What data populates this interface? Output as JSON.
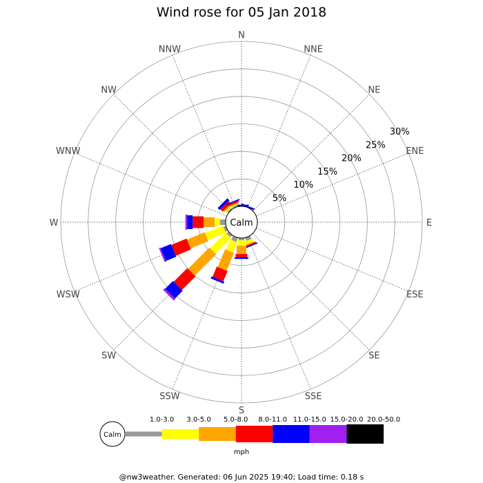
{
  "chart_data": {
    "type": "wind-rose",
    "title": "Wind rose for 05 Jan 2018",
    "directions": [
      "N",
      "NNE",
      "NE",
      "ENE",
      "E",
      "ESE",
      "SE",
      "SSE",
      "S",
      "SSW",
      "SW",
      "WSW",
      "W",
      "WNW",
      "NW",
      "NNW"
    ],
    "ring_labels": [
      "5%",
      "10%",
      "15%",
      "20%",
      "25%",
      "30%"
    ],
    "ring_values": [
      5,
      10,
      15,
      20,
      25,
      30
    ],
    "r_max": 30,
    "grid": true,
    "calm_label": "Calm",
    "speed_unit": "mph",
    "bins": [
      {
        "label": "1.0-3.0",
        "color": "#999999"
      },
      {
        "label": "3.0-5.0",
        "color": "#ffff00"
      },
      {
        "label": "5.0-8.0",
        "color": "#ffa500"
      },
      {
        "label": "8.0-11.0",
        "color": "#ff0000"
      },
      {
        "label": "11.0-15.0",
        "color": "#0000ff"
      },
      {
        "label": "15.0-20.0",
        "color": "#a020f0"
      },
      {
        "label": "20.0-50.0",
        "color": "#000000"
      }
    ],
    "series": [
      {
        "dir": "N",
        "values": [
          0.0,
          0.0,
          0.0,
          0.0,
          0.3,
          0.0,
          0.0
        ]
      },
      {
        "dir": "NNE",
        "values": [
          0.0,
          0.0,
          0.0,
          0.0,
          0.3,
          0.0,
          0.0
        ]
      },
      {
        "dir": "NE",
        "values": [
          0.0,
          0.0,
          0.0,
          0.0,
          0.0,
          0.0,
          0.0
        ]
      },
      {
        "dir": "ENE",
        "values": [
          0.0,
          0.0,
          0.0,
          0.0,
          0.0,
          0.0,
          0.0
        ]
      },
      {
        "dir": "E",
        "values": [
          0.0,
          0.0,
          0.0,
          0.0,
          0.0,
          0.0,
          0.0
        ]
      },
      {
        "dir": "ESE",
        "values": [
          0.0,
          0.0,
          0.0,
          0.0,
          0.0,
          0.0,
          0.0
        ]
      },
      {
        "dir": "SE",
        "values": [
          0.0,
          0.0,
          0.0,
          0.0,
          0.0,
          0.0,
          0.0
        ]
      },
      {
        "dir": "SSE",
        "values": [
          0.6,
          0.6,
          0.2,
          0.2,
          0.2,
          0.0,
          0.0
        ]
      },
      {
        "dir": "S",
        "values": [
          0.4,
          1.0,
          1.5,
          0.6,
          0.3,
          0.0,
          0.0
        ]
      },
      {
        "dir": "SSW",
        "values": [
          0.8,
          2.0,
          3.5,
          2.0,
          0.4,
          0.0,
          0.0
        ]
      },
      {
        "dir": "SW",
        "values": [
          0.5,
          4.0,
          5.5,
          3.5,
          2.0,
          0.4,
          0.0
        ]
      },
      {
        "dir": "WSW",
        "values": [
          0.5,
          3.5,
          3.5,
          3.0,
          2.0,
          0.3,
          0.0
        ]
      },
      {
        "dir": "W",
        "values": [
          1.0,
          1.0,
          2.0,
          2.0,
          1.0,
          0.3,
          0.0
        ]
      },
      {
        "dir": "WNW",
        "values": [
          0.0,
          0.0,
          0.0,
          0.0,
          0.0,
          0.0,
          0.0
        ]
      },
      {
        "dir": "NW",
        "values": [
          0.3,
          0.3,
          0.3,
          0.6,
          0.5,
          0.0,
          0.0
        ]
      },
      {
        "dir": "NNW",
        "values": [
          0.3,
          0.2,
          0.2,
          0.3,
          0.2,
          0.0,
          0.0
        ]
      }
    ]
  },
  "footer": "@nw3weather. Generated: 06 Jun 2025 19:40; Load time: 0.18 s"
}
